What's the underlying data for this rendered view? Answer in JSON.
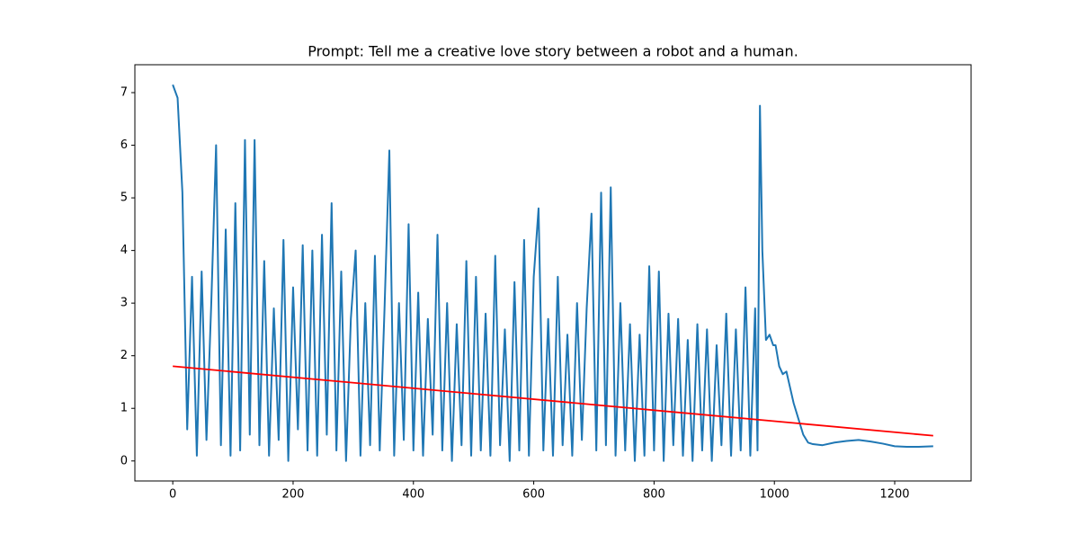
{
  "chart_data": {
    "type": "line",
    "title": "Prompt: Tell me a creative love story between a robot and a human.",
    "x": [
      0,
      8,
      16,
      24,
      32,
      40,
      48,
      56,
      64,
      72,
      80,
      88,
      96,
      104,
      112,
      120,
      128,
      136,
      144,
      152,
      160,
      168,
      176,
      184,
      192,
      200,
      208,
      216,
      224,
      232,
      240,
      248,
      256,
      264,
      272,
      280,
      288,
      296,
      304,
      312,
      320,
      328,
      336,
      344,
      352,
      360,
      368,
      376,
      384,
      392,
      400,
      408,
      416,
      424,
      432,
      440,
      448,
      456,
      464,
      472,
      480,
      488,
      496,
      504,
      512,
      520,
      528,
      536,
      544,
      552,
      560,
      568,
      576,
      584,
      592,
      600,
      608,
      616,
      624,
      632,
      640,
      648,
      656,
      664,
      672,
      680,
      688,
      696,
      704,
      712,
      720,
      728,
      736,
      744,
      752,
      760,
      768,
      776,
      784,
      792,
      800,
      808,
      816,
      824,
      832,
      840,
      848,
      856,
      864,
      872,
      880,
      888,
      896,
      904,
      912,
      920,
      928,
      936,
      944,
      952,
      960,
      968,
      972,
      976,
      980,
      986,
      992,
      998,
      1002,
      1008,
      1014,
      1020,
      1026,
      1032,
      1040,
      1048,
      1056,
      1064,
      1080,
      1100,
      1120,
      1140,
      1160,
      1180,
      1200,
      1220,
      1240,
      1264
    ],
    "series": [
      {
        "color": "#1f77b4",
        "values": [
          7.15,
          6.9,
          5.1,
          0.6,
          3.5,
          0.1,
          3.6,
          0.4,
          3.0,
          6.0,
          0.3,
          4.4,
          0.1,
          4.9,
          0.2,
          6.1,
          0.5,
          6.1,
          0.3,
          3.8,
          0.1,
          2.9,
          0.4,
          4.2,
          0.0,
          3.3,
          0.6,
          4.1,
          0.2,
          4.0,
          0.1,
          4.3,
          0.5,
          4.9,
          0.2,
          3.6,
          0.0,
          2.7,
          4.0,
          0.1,
          3.0,
          0.3,
          3.9,
          0.2,
          2.9,
          5.9,
          0.1,
          3.0,
          0.4,
          4.5,
          0.2,
          3.2,
          0.1,
          2.7,
          0.5,
          4.3,
          0.2,
          3.0,
          0.0,
          2.6,
          0.3,
          3.8,
          0.1,
          3.5,
          0.2,
          2.8,
          0.1,
          3.9,
          0.3,
          2.5,
          0.0,
          3.4,
          0.2,
          4.2,
          0.1,
          3.5,
          4.8,
          0.2,
          2.7,
          0.1,
          3.5,
          0.3,
          2.4,
          0.1,
          3.0,
          0.4,
          2.9,
          4.7,
          0.2,
          5.1,
          0.3,
          5.2,
          0.1,
          3.0,
          0.2,
          2.6,
          0.0,
          2.4,
          0.1,
          3.7,
          0.2,
          3.6,
          0.0,
          2.8,
          0.3,
          2.7,
          0.1,
          2.3,
          0.0,
          2.6,
          0.2,
          2.5,
          0.0,
          2.2,
          0.3,
          2.8,
          0.1,
          2.5,
          0.2,
          3.3,
          0.1,
          2.9,
          0.2,
          6.75,
          4.0,
          2.3,
          2.4,
          2.2,
          2.2,
          1.8,
          1.65,
          1.7,
          1.4,
          1.1,
          0.8,
          0.5,
          0.35,
          0.32,
          0.3,
          0.35,
          0.38,
          0.4,
          0.37,
          0.33,
          0.28,
          0.27,
          0.27,
          0.28
        ]
      }
    ],
    "trend_line": {
      "x": [
        0,
        1264
      ],
      "values": [
        1.8,
        0.48
      ],
      "color": "#ff0000"
    },
    "xlim": [
      -63,
      1327
    ],
    "ylim": [
      -0.38,
      7.53
    ],
    "xticks": [
      0,
      200,
      400,
      600,
      800,
      1000,
      1200
    ],
    "yticks": [
      0,
      1,
      2,
      3,
      4,
      5,
      6,
      7
    ]
  }
}
